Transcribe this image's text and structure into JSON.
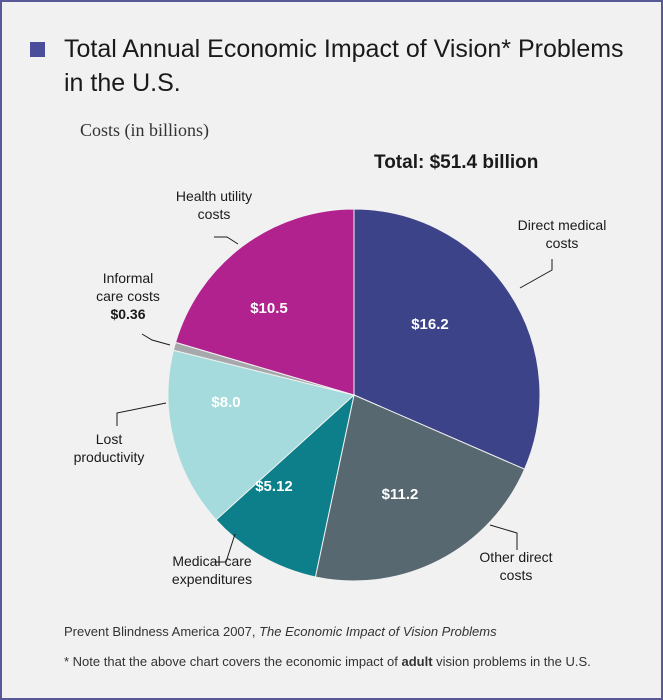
{
  "header": {
    "title_line1": "Total Annual Economic Impact of Vision* Problems",
    "title_line2": "in the U.S."
  },
  "chart_data": {
    "type": "pie",
    "subtitle": "Costs (in billions)",
    "total_label": "Total: $51.4 billion",
    "total": 51.4,
    "slices": [
      {
        "name_lines": [
          "Direct medical",
          "costs"
        ],
        "value": 16.2,
        "value_label": "$16.2",
        "color": "#3d4389"
      },
      {
        "name_lines": [
          "Other direct",
          "costs"
        ],
        "value": 11.2,
        "value_label": "$11.2",
        "color": "#586871"
      },
      {
        "name_lines": [
          "Medical care",
          "expenditures"
        ],
        "value": 5.12,
        "value_label": "$5.12",
        "color": "#0d7f8a"
      },
      {
        "name_lines": [
          "Lost",
          "productivity"
        ],
        "value": 8.0,
        "value_label": "$8.0",
        "color": "#a5dbdc"
      },
      {
        "name_lines": [
          "Informal",
          "care costs"
        ],
        "value": 0.36,
        "value_label": "$0.36",
        "color": "#a7a8ab"
      },
      {
        "name_lines": [
          "Health utility",
          "costs"
        ],
        "value": 10.5,
        "value_label": "$10.5",
        "color": "#b2228e"
      }
    ]
  },
  "footer": {
    "source_prefix": "Prevent Blindness America 2007, ",
    "source_title": "The Economic Impact of Vision Problems",
    "note_prefix": "* Note that the above chart covers the economic impact of ",
    "note_bold": "adult",
    "note_suffix": " vision problems in the U.S."
  }
}
